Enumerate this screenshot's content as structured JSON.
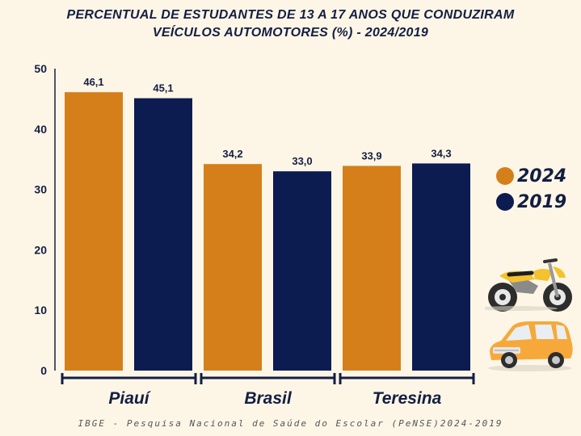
{
  "title_line1": "PERCENTUAL DE ESTUDANTES DE 13 A 17 ANOS QUE CONDUZIRAM",
  "title_line2": "VEÍCULOS AUTOMOTORES (%) - 2024/2019",
  "source": "IBGE - Pesquisa Nacional de Saúde do Escolar (PeNSE)2024-2019",
  "chart_data": {
    "type": "bar",
    "categories": [
      "Piauí",
      "Brasil",
      "Teresina"
    ],
    "series": [
      {
        "name": "2024",
        "values": [
          46.1,
          34.2,
          33.9
        ],
        "labels": [
          "46,1",
          "34,2",
          "33,9"
        ],
        "color": "#D57F1B"
      },
      {
        "name": "2019",
        "values": [
          45.1,
          33.0,
          34.3
        ],
        "labels": [
          "45,1",
          "33,0",
          "34,3"
        ],
        "color": "#0C1C51"
      }
    ],
    "yticks": [
      0,
      10,
      20,
      30,
      40,
      50
    ],
    "ylim": [
      0,
      50
    ],
    "grid": false,
    "legend_position": "right"
  },
  "decorations": {
    "icons": [
      "motorcycle-icon",
      "car-icon"
    ],
    "motorcycle_color": "#F4C22E",
    "car_color": "#F6A93A"
  }
}
